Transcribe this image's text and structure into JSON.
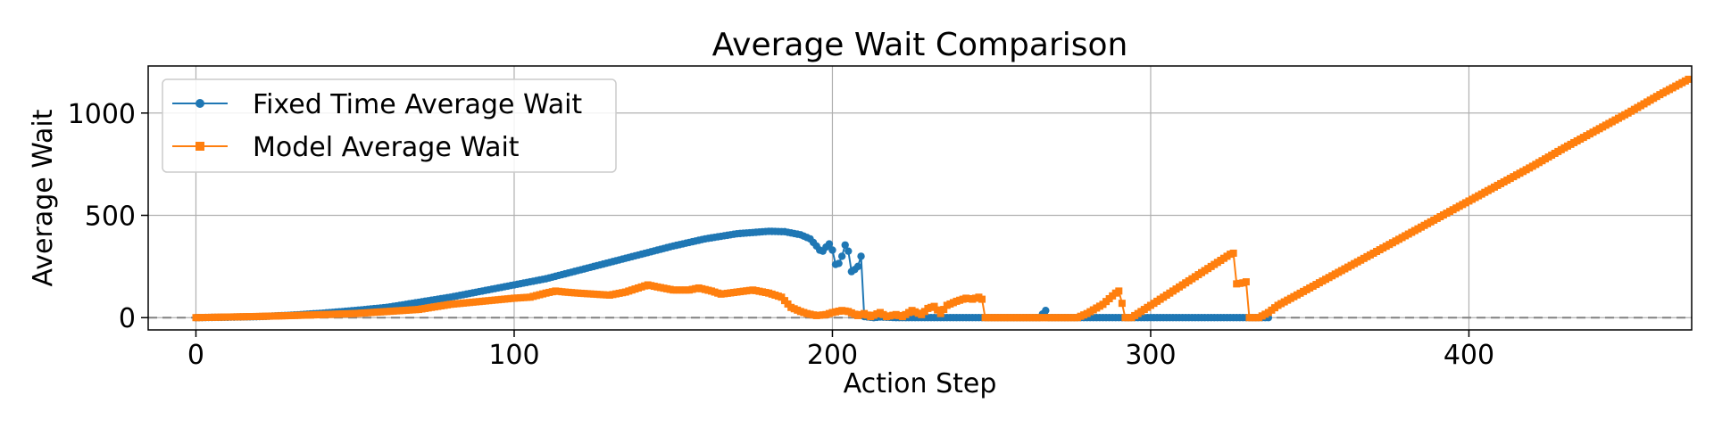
{
  "chart_data": {
    "type": "line",
    "title": "Average Wait Comparison",
    "xlabel": "Action Step",
    "ylabel": "Average Wait",
    "xlim": [
      -15,
      470
    ],
    "ylim": [
      -60,
      1230
    ],
    "xticks": [
      0,
      100,
      200,
      300,
      400
    ],
    "yticks": [
      0,
      500,
      1000
    ],
    "grid": true,
    "legend_position": "upper-left",
    "reference_line": {
      "y": 0,
      "style": "dashed",
      "color": "#808080"
    },
    "series": [
      {
        "name": "Fixed Time Average Wait",
        "color": "#1f77b4",
        "marker": "circle",
        "points": [
          [
            0,
            0
          ],
          [
            10,
            2
          ],
          [
            20,
            5
          ],
          [
            30,
            12
          ],
          [
            40,
            22
          ],
          [
            50,
            35
          ],
          [
            60,
            50
          ],
          [
            70,
            75
          ],
          [
            80,
            100
          ],
          [
            90,
            130
          ],
          [
            100,
            160
          ],
          [
            110,
            190
          ],
          [
            120,
            230
          ],
          [
            130,
            270
          ],
          [
            140,
            310
          ],
          [
            150,
            350
          ],
          [
            160,
            385
          ],
          [
            170,
            410
          ],
          [
            180,
            422
          ],
          [
            185,
            420
          ],
          [
            190,
            405
          ],
          [
            193,
            385
          ],
          [
            195,
            350
          ],
          [
            196,
            330
          ],
          [
            197,
            325
          ],
          [
            198,
            345
          ],
          [
            199,
            360
          ],
          [
            200,
            330
          ],
          [
            201,
            260
          ],
          [
            202,
            265
          ],
          [
            203,
            300
          ],
          [
            204,
            355
          ],
          [
            205,
            325
          ],
          [
            206,
            225
          ],
          [
            207,
            235
          ],
          [
            208,
            250
          ],
          [
            209,
            300
          ],
          [
            210,
            5
          ],
          [
            213,
            0
          ],
          [
            215,
            3
          ],
          [
            220,
            0
          ],
          [
            230,
            0
          ],
          [
            240,
            0
          ],
          [
            250,
            0
          ],
          [
            260,
            0
          ],
          [
            265,
            0
          ],
          [
            267,
            35
          ],
          [
            268,
            0
          ],
          [
            280,
            0
          ],
          [
            290,
            0
          ],
          [
            300,
            0
          ],
          [
            310,
            0
          ],
          [
            320,
            0
          ],
          [
            330,
            0
          ],
          [
            337,
            0
          ]
        ]
      },
      {
        "name": "Model Average Wait",
        "color": "#ff7f0e",
        "marker": "square",
        "points": [
          [
            0,
            0
          ],
          [
            10,
            3
          ],
          [
            20,
            6
          ],
          [
            30,
            10
          ],
          [
            40,
            15
          ],
          [
            50,
            20
          ],
          [
            60,
            30
          ],
          [
            70,
            40
          ],
          [
            80,
            65
          ],
          [
            90,
            80
          ],
          [
            100,
            95
          ],
          [
            105,
            100
          ],
          [
            110,
            120
          ],
          [
            113,
            130
          ],
          [
            116,
            125
          ],
          [
            120,
            120
          ],
          [
            125,
            115
          ],
          [
            130,
            110
          ],
          [
            135,
            125
          ],
          [
            140,
            150
          ],
          [
            142,
            160
          ],
          [
            145,
            150
          ],
          [
            150,
            135
          ],
          [
            155,
            135
          ],
          [
            158,
            145
          ],
          [
            162,
            130
          ],
          [
            165,
            115
          ],
          [
            170,
            125
          ],
          [
            175,
            135
          ],
          [
            180,
            120
          ],
          [
            184,
            100
          ],
          [
            187,
            50
          ],
          [
            190,
            30
          ],
          [
            192,
            20
          ],
          [
            195,
            10
          ],
          [
            198,
            15
          ],
          [
            200,
            25
          ],
          [
            203,
            35
          ],
          [
            205,
            30
          ],
          [
            208,
            10
          ],
          [
            210,
            20
          ],
          [
            212,
            5
          ],
          [
            215,
            25
          ],
          [
            217,
            5
          ],
          [
            220,
            15
          ],
          [
            222,
            5
          ],
          [
            225,
            35
          ],
          [
            228,
            15
          ],
          [
            230,
            45
          ],
          [
            232,
            55
          ],
          [
            234,
            20
          ],
          [
            236,
            60
          ],
          [
            239,
            80
          ],
          [
            242,
            95
          ],
          [
            244,
            90
          ],
          [
            246,
            100
          ],
          [
            247,
            90
          ],
          [
            248,
            0
          ],
          [
            255,
            0
          ],
          [
            265,
            0
          ],
          [
            277,
            0
          ],
          [
            280,
            20
          ],
          [
            285,
            65
          ],
          [
            289,
            120
          ],
          [
            290,
            130
          ],
          [
            291,
            70
          ],
          [
            292,
            0
          ],
          [
            294,
            0
          ],
          [
            296,
            20
          ],
          [
            300,
            60
          ],
          [
            305,
            110
          ],
          [
            310,
            160
          ],
          [
            315,
            210
          ],
          [
            320,
            260
          ],
          [
            325,
            310
          ],
          [
            326,
            315
          ],
          [
            327,
            165
          ],
          [
            329,
            170
          ],
          [
            330,
            175
          ],
          [
            331,
            0
          ],
          [
            334,
            0
          ],
          [
            337,
            25
          ],
          [
            340,
            60
          ],
          [
            350,
            145
          ],
          [
            360,
            230
          ],
          [
            370,
            315
          ],
          [
            380,
            400
          ],
          [
            390,
            485
          ],
          [
            400,
            570
          ],
          [
            410,
            655
          ],
          [
            420,
            740
          ],
          [
            430,
            830
          ],
          [
            440,
            915
          ],
          [
            450,
            1000
          ],
          [
            460,
            1090
          ],
          [
            469,
            1165
          ]
        ]
      }
    ]
  }
}
